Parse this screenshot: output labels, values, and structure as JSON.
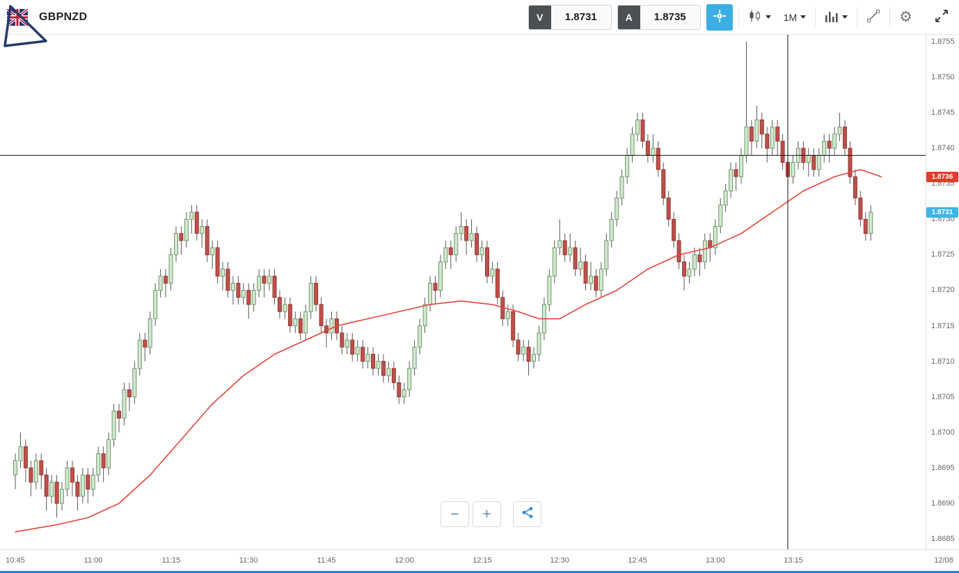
{
  "toolbar": {
    "symbol": "GBPNZD",
    "bid": {
      "label": "V",
      "value": "1.8731"
    },
    "ask": {
      "label": "A",
      "value": "1.8735"
    },
    "timeframe": "1M",
    "settings_glyph": "⚙"
  },
  "axis": {
    "price_labels": [
      "1.8755",
      "1.8750",
      "1.8745",
      "1.8740",
      "1.8735",
      "1.8730",
      "1.8725",
      "1.8720",
      "1.8715",
      "1.8710",
      "1.8705",
      "1.8700",
      "1.8695",
      "1.8690",
      "1.8685"
    ],
    "time_labels": [
      {
        "label": "10:45",
        "minute": 0
      },
      {
        "label": "11:00",
        "minute": 15
      },
      {
        "label": "11:15",
        "minute": 30
      },
      {
        "label": "11:30",
        "minute": 45
      },
      {
        "label": "11:45",
        "minute": 60
      },
      {
        "label": "12:00",
        "minute": 75
      },
      {
        "label": "12:15",
        "minute": 90
      },
      {
        "label": "12:30",
        "minute": 105
      },
      {
        "label": "12:45",
        "minute": 120
      },
      {
        "label": "13:00",
        "minute": 135
      },
      {
        "label": "13:15",
        "minute": 150
      },
      {
        "label": "12/08",
        "minute": 179
      }
    ]
  },
  "tags": {
    "ma_tag": {
      "value": "1.8736",
      "bg": "#e8382b"
    },
    "bid_tag": {
      "value": "1.8731",
      "bg": "#3eb4e8"
    }
  },
  "zoom": {
    "minus": "−",
    "plus": "+"
  },
  "chart_data": {
    "type": "candlestick",
    "symbol": "GBPNZD",
    "timeframe": "1M",
    "start_time": "10:45",
    "ylim": [
      1.8685,
      1.8755
    ],
    "crosshair": {
      "minute": 149,
      "price": 1.8739
    },
    "colors": {
      "up_fill": "#d3e8d0",
      "up_border": "#6f9a6b",
      "down_fill": "#c0504a",
      "down_border": "#8e3a34",
      "wick": "#555555",
      "ma": "#e5443a",
      "crosshair": "#111111"
    },
    "candles": [
      [
        1.8694,
        1.8697,
        1.8692,
        1.8696
      ],
      [
        1.8696,
        1.87,
        1.8695,
        1.8698
      ],
      [
        1.8698,
        1.8699,
        1.8693,
        1.8695
      ],
      [
        1.8695,
        1.8696,
        1.8691,
        1.8693
      ],
      [
        1.8693,
        1.8697,
        1.8692,
        1.8696
      ],
      [
        1.8696,
        1.8697,
        1.8692,
        1.8694
      ],
      [
        1.8694,
        1.8695,
        1.8689,
        1.8691
      ],
      [
        1.8691,
        1.8694,
        1.869,
        1.8693
      ],
      [
        1.8693,
        1.8694,
        1.8688,
        1.869
      ],
      [
        1.869,
        1.8693,
        1.8689,
        1.8692
      ],
      [
        1.8692,
        1.8696,
        1.8691,
        1.8695
      ],
      [
        1.8695,
        1.8696,
        1.8691,
        1.8693
      ],
      [
        1.8693,
        1.8694,
        1.8689,
        1.8691
      ],
      [
        1.8691,
        1.8695,
        1.869,
        1.8694
      ],
      [
        1.8694,
        1.8695,
        1.869,
        1.8692
      ],
      [
        1.8692,
        1.8695,
        1.8691,
        1.8694
      ],
      [
        1.8694,
        1.8698,
        1.8693,
        1.8697
      ],
      [
        1.8697,
        1.8698,
        1.8693,
        1.8695
      ],
      [
        1.8695,
        1.87,
        1.8694,
        1.8699
      ],
      [
        1.8699,
        1.8704,
        1.8698,
        1.8703
      ],
      [
        1.8703,
        1.8704,
        1.87,
        1.8702
      ],
      [
        1.8702,
        1.8707,
        1.8701,
        1.8706
      ],
      [
        1.8706,
        1.8707,
        1.8703,
        1.8705
      ],
      [
        1.8705,
        1.871,
        1.8704,
        1.8709
      ],
      [
        1.8709,
        1.8714,
        1.8708,
        1.8713
      ],
      [
        1.8713,
        1.8714,
        1.871,
        1.8712
      ],
      [
        1.8712,
        1.8717,
        1.8711,
        1.8716
      ],
      [
        1.8716,
        1.8721,
        1.8715,
        1.872
      ],
      [
        1.872,
        1.8723,
        1.8719,
        1.8722
      ],
      [
        1.8722,
        1.8723,
        1.8719,
        1.8721
      ],
      [
        1.8721,
        1.8726,
        1.872,
        1.8725
      ],
      [
        1.8725,
        1.8729,
        1.8724,
        1.8728
      ],
      [
        1.8728,
        1.8729,
        1.8725,
        1.8727
      ],
      [
        1.8727,
        1.8731,
        1.8726,
        1.873
      ],
      [
        1.873,
        1.8732,
        1.8728,
        1.8731
      ],
      [
        1.8731,
        1.8732,
        1.8727,
        1.8728
      ],
      [
        1.8728,
        1.873,
        1.8726,
        1.8729
      ],
      [
        1.8729,
        1.873,
        1.8724,
        1.8725
      ],
      [
        1.8725,
        1.8727,
        1.8723,
        1.8726
      ],
      [
        1.8726,
        1.8727,
        1.8721,
        1.8722
      ],
      [
        1.8722,
        1.8724,
        1.872,
        1.8723
      ],
      [
        1.8723,
        1.8724,
        1.8719,
        1.872
      ],
      [
        1.872,
        1.8722,
        1.8718,
        1.8721
      ],
      [
        1.8721,
        1.8722,
        1.8718,
        1.8719
      ],
      [
        1.8719,
        1.8721,
        1.8718,
        1.872
      ],
      [
        1.872,
        1.8721,
        1.8716,
        1.8718
      ],
      [
        1.8718,
        1.8721,
        1.8717,
        1.872
      ],
      [
        1.872,
        1.8723,
        1.8719,
        1.8722
      ],
      [
        1.8722,
        1.8723,
        1.8719,
        1.8721
      ],
      [
        1.8721,
        1.8723,
        1.872,
        1.8722
      ],
      [
        1.8722,
        1.8723,
        1.8718,
        1.8719
      ],
      [
        1.8719,
        1.872,
        1.8716,
        1.8717
      ],
      [
        1.8717,
        1.8719,
        1.8716,
        1.8718
      ],
      [
        1.8718,
        1.8719,
        1.8714,
        1.8715
      ],
      [
        1.8715,
        1.8717,
        1.8714,
        1.8716
      ],
      [
        1.8716,
        1.8717,
        1.8713,
        1.8714
      ],
      [
        1.8714,
        1.8718,
        1.8713,
        1.8717
      ],
      [
        1.8717,
        1.8722,
        1.8716,
        1.8721
      ],
      [
        1.8721,
        1.8722,
        1.8717,
        1.8718
      ],
      [
        1.8718,
        1.8719,
        1.8714,
        1.8715
      ],
      [
        1.8715,
        1.8716,
        1.8712,
        1.8714
      ],
      [
        1.8714,
        1.8717,
        1.8713,
        1.8716
      ],
      [
        1.8716,
        1.8717,
        1.8713,
        1.8714
      ],
      [
        1.8714,
        1.8715,
        1.8711,
        1.8712
      ],
      [
        1.8712,
        1.8714,
        1.8711,
        1.8713
      ],
      [
        1.8713,
        1.8714,
        1.871,
        1.8711
      ],
      [
        1.8711,
        1.8713,
        1.871,
        1.8712
      ],
      [
        1.8712,
        1.8713,
        1.8709,
        1.871
      ],
      [
        1.871,
        1.8712,
        1.8709,
        1.8711
      ],
      [
        1.8711,
        1.8712,
        1.8708,
        1.8709
      ],
      [
        1.8709,
        1.8711,
        1.8708,
        1.871
      ],
      [
        1.871,
        1.8711,
        1.8707,
        1.8708
      ],
      [
        1.8708,
        1.871,
        1.8707,
        1.8709
      ],
      [
        1.8709,
        1.871,
        1.8706,
        1.8707
      ],
      [
        1.8707,
        1.8708,
        1.8704,
        1.8705
      ],
      [
        1.8705,
        1.8707,
        1.8704,
        1.8706
      ],
      [
        1.8706,
        1.871,
        1.8705,
        1.8709
      ],
      [
        1.8709,
        1.8713,
        1.8708,
        1.8712
      ],
      [
        1.8712,
        1.8716,
        1.8711,
        1.8715
      ],
      [
        1.8715,
        1.8719,
        1.8714,
        1.8718
      ],
      [
        1.8718,
        1.8722,
        1.8717,
        1.8721
      ],
      [
        1.8721,
        1.8722,
        1.8718,
        1.872
      ],
      [
        1.872,
        1.8725,
        1.8719,
        1.8724
      ],
      [
        1.8724,
        1.8727,
        1.8723,
        1.8726
      ],
      [
        1.8726,
        1.8727,
        1.8723,
        1.8725
      ],
      [
        1.8725,
        1.8729,
        1.8724,
        1.8728
      ],
      [
        1.8728,
        1.8731,
        1.8727,
        1.8729
      ],
      [
        1.8729,
        1.873,
        1.8725,
        1.8727
      ],
      [
        1.8727,
        1.873,
        1.8726,
        1.8728
      ],
      [
        1.8728,
        1.8729,
        1.8724,
        1.8725
      ],
      [
        1.8725,
        1.8727,
        1.8724,
        1.8726
      ],
      [
        1.8726,
        1.8727,
        1.8721,
        1.8722
      ],
      [
        1.8722,
        1.8724,
        1.8721,
        1.8723
      ],
      [
        1.8723,
        1.8724,
        1.8718,
        1.8719
      ],
      [
        1.8719,
        1.872,
        1.8715,
        1.8716
      ],
      [
        1.8716,
        1.8718,
        1.8715,
        1.8717
      ],
      [
        1.8717,
        1.8718,
        1.8712,
        1.8713
      ],
      [
        1.8713,
        1.8714,
        1.871,
        1.8711
      ],
      [
        1.8711,
        1.8713,
        1.871,
        1.8712
      ],
      [
        1.8712,
        1.8713,
        1.8708,
        1.871
      ],
      [
        1.871,
        1.8712,
        1.8709,
        1.8711
      ],
      [
        1.8711,
        1.8715,
        1.871,
        1.8714
      ],
      [
        1.8714,
        1.8719,
        1.8713,
        1.8718
      ],
      [
        1.8718,
        1.8723,
        1.8717,
        1.8722
      ],
      [
        1.8722,
        1.8727,
        1.8721,
        1.8726
      ],
      [
        1.8726,
        1.873,
        1.8725,
        1.8727
      ],
      [
        1.8727,
        1.8728,
        1.8724,
        1.8725
      ],
      [
        1.8725,
        1.8728,
        1.8724,
        1.8726
      ],
      [
        1.8726,
        1.8727,
        1.8722,
        1.8723
      ],
      [
        1.8723,
        1.8726,
        1.8722,
        1.8724
      ],
      [
        1.8724,
        1.8725,
        1.872,
        1.8721
      ],
      [
        1.8721,
        1.8724,
        1.872,
        1.8722
      ],
      [
        1.8722,
        1.8723,
        1.8719,
        1.872
      ],
      [
        1.872,
        1.8724,
        1.8719,
        1.8723
      ],
      [
        1.8723,
        1.8728,
        1.8722,
        1.8727
      ],
      [
        1.8727,
        1.8731,
        1.8726,
        1.873
      ],
      [
        1.873,
        1.8734,
        1.8729,
        1.8733
      ],
      [
        1.8733,
        1.8737,
        1.8732,
        1.8736
      ],
      [
        1.8736,
        1.874,
        1.8735,
        1.8739
      ],
      [
        1.8739,
        1.8743,
        1.8738,
        1.8742
      ],
      [
        1.8742,
        1.8745,
        1.8741,
        1.8744
      ],
      [
        1.8744,
        1.8745,
        1.874,
        1.8741
      ],
      [
        1.8741,
        1.8742,
        1.8738,
        1.8739
      ],
      [
        1.8739,
        1.8742,
        1.8738,
        1.874
      ],
      [
        1.874,
        1.8741,
        1.8736,
        1.8737
      ],
      [
        1.8737,
        1.8738,
        1.8732,
        1.8733
      ],
      [
        1.8733,
        1.8734,
        1.8729,
        1.873
      ],
      [
        1.873,
        1.8731,
        1.8726,
        1.8727
      ],
      [
        1.8727,
        1.8728,
        1.8723,
        1.8724
      ],
      [
        1.8724,
        1.8725,
        1.872,
        1.8722
      ],
      [
        1.8722,
        1.8724,
        1.8721,
        1.8723
      ],
      [
        1.8723,
        1.8726,
        1.8722,
        1.8725
      ],
      [
        1.8725,
        1.8726,
        1.8722,
        1.8724
      ],
      [
        1.8724,
        1.8728,
        1.8723,
        1.8727
      ],
      [
        1.8727,
        1.8728,
        1.8724,
        1.8726
      ],
      [
        1.8726,
        1.873,
        1.8725,
        1.8729
      ],
      [
        1.8729,
        1.8733,
        1.8728,
        1.8732
      ],
      [
        1.8732,
        1.8735,
        1.8731,
        1.8734
      ],
      [
        1.8734,
        1.8738,
        1.8733,
        1.8737
      ],
      [
        1.8737,
        1.8738,
        1.8734,
        1.8736
      ],
      [
        1.8736,
        1.874,
        1.8735,
        1.8739
      ],
      [
        1.8739,
        1.8755,
        1.8738,
        1.8743
      ],
      [
        1.8743,
        1.8744,
        1.8739,
        1.8741
      ],
      [
        1.8741,
        1.8746,
        1.874,
        1.8744
      ],
      [
        1.8744,
        1.8745,
        1.874,
        1.8742
      ],
      [
        1.8742,
        1.8743,
        1.8738,
        1.874
      ],
      [
        1.874,
        1.8744,
        1.8739,
        1.8743
      ],
      [
        1.8743,
        1.8744,
        1.8739,
        1.8741
      ],
      [
        1.8741,
        1.8742,
        1.8737,
        1.8738
      ],
      [
        1.8738,
        1.8739,
        1.8735,
        1.8736
      ],
      [
        1.8736,
        1.8739,
        1.8735,
        1.8738
      ],
      [
        1.8738,
        1.8741,
        1.8737,
        1.874
      ],
      [
        1.874,
        1.8741,
        1.8737,
        1.8738
      ],
      [
        1.8738,
        1.874,
        1.8736,
        1.8739
      ],
      [
        1.8739,
        1.874,
        1.8736,
        1.8737
      ],
      [
        1.8737,
        1.874,
        1.8736,
        1.8739
      ],
      [
        1.8739,
        1.8742,
        1.8738,
        1.8741
      ],
      [
        1.8741,
        1.8742,
        1.8738,
        1.874
      ],
      [
        1.874,
        1.8743,
        1.8739,
        1.8742
      ],
      [
        1.8742,
        1.8745,
        1.8741,
        1.8743
      ],
      [
        1.8743,
        1.8744,
        1.8739,
        1.874
      ],
      [
        1.874,
        1.8741,
        1.8735,
        1.8736
      ],
      [
        1.8736,
        1.8737,
        1.8732,
        1.8733
      ],
      [
        1.8733,
        1.8734,
        1.8729,
        1.873
      ],
      [
        1.873,
        1.8731,
        1.8727,
        1.8728
      ],
      [
        1.8728,
        1.8732,
        1.8727,
        1.8731
      ]
    ],
    "ma_points": [
      [
        0,
        1.8686
      ],
      [
        8,
        1.8687
      ],
      [
        14,
        1.8688
      ],
      [
        20,
        1.869
      ],
      [
        26,
        1.8694
      ],
      [
        32,
        1.8699
      ],
      [
        38,
        1.8704
      ],
      [
        44,
        1.8708
      ],
      [
        50,
        1.8711
      ],
      [
        56,
        1.8713
      ],
      [
        62,
        1.8715
      ],
      [
        68,
        1.8716
      ],
      [
        74,
        1.8717
      ],
      [
        80,
        1.8718
      ],
      [
        86,
        1.87185
      ],
      [
        92,
        1.8718
      ],
      [
        97,
        1.8717
      ],
      [
        101,
        1.8716
      ],
      [
        105,
        1.8716
      ],
      [
        110,
        1.8718
      ],
      [
        116,
        1.872
      ],
      [
        122,
        1.8723
      ],
      [
        128,
        1.8725
      ],
      [
        134,
        1.8726
      ],
      [
        140,
        1.8728
      ],
      [
        146,
        1.8731
      ],
      [
        152,
        1.8734
      ],
      [
        158,
        1.8736
      ],
      [
        163,
        1.8737
      ],
      [
        167,
        1.8736
      ]
    ]
  }
}
